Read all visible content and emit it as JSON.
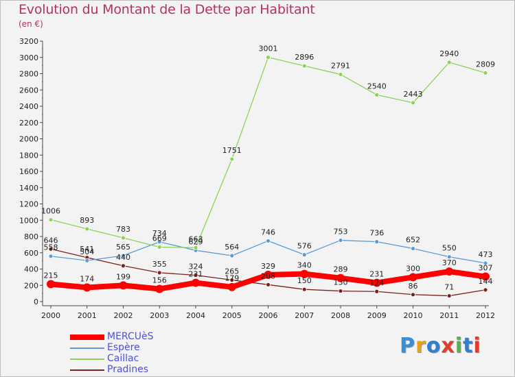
{
  "title": "Evolution du Montant de la Dette par Habitant",
  "subtitle": "(en €)",
  "logo": {
    "text": "Proxiti",
    "colors": [
      "#3a8fd8",
      "#e8a21a",
      "#2e7fd0",
      "#e23c2c",
      "#52b34a",
      "#2e7fd0",
      "#e23c2c"
    ]
  },
  "chart_data": {
    "type": "line",
    "x": [
      "2000",
      "2001",
      "2002",
      "2003",
      "2004",
      "2005",
      "2006",
      "2007",
      "2008",
      "2009",
      "2010",
      "2011",
      "2012"
    ],
    "ylim": [
      0,
      3200
    ],
    "yticks": [
      "0",
      "200",
      "400",
      "600",
      "800",
      "1000",
      "1200",
      "1400",
      "1600",
      "1800",
      "2000",
      "2200",
      "2400",
      "2600",
      "2800",
      "3000",
      "3200"
    ],
    "grid": false,
    "legend_position": "bottom-left",
    "series": [
      {
        "name": "MERCUèS",
        "color": "#ff0000",
        "values": [
          215,
          174,
          199,
          156,
          231,
          179,
          329,
          340,
          289,
          231,
          300,
          370,
          307
        ]
      },
      {
        "name": "Espère",
        "color": "#5b9bd5",
        "values": [
          558,
          504,
          565,
          734,
          629,
          564,
          746,
          576,
          753,
          736,
          652,
          550,
          473
        ]
      },
      {
        "name": "Caillac",
        "color": "#8bd255",
        "values": [
          1006,
          893,
          783,
          669,
          663,
          1751,
          3001,
          2896,
          2791,
          2540,
          2443,
          2940,
          2809
        ]
      },
      {
        "name": "Pradines",
        "color": "#7b1f1f",
        "values": [
          646,
          541,
          440,
          355,
          324,
          265,
          208,
          150,
          130,
          124,
          86,
          71,
          144
        ]
      }
    ]
  }
}
